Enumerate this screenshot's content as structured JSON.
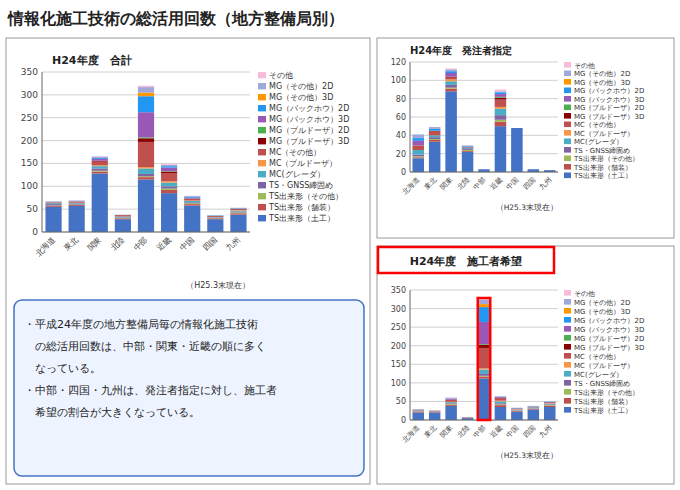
{
  "title": "情報化施工技術の総活用回数（地方整備局別）",
  "annotations": [
    "・平成24年度の地方整備局毎の情報化施工技術",
    "　の総活用回数は、中部・関東・近畿の順に多く",
    "　なっている。",
    "・中部・四国・九州は、発注者指定に対し、施工者",
    "　希望の割合が大きくなっている。"
  ],
  "chart_data": [
    {
      "type": "bar",
      "stacked": true,
      "grid": true,
      "legend": "right",
      "title": "H24年度　合計",
      "annotations": [
        "（H25.3末現在）"
      ],
      "categories": [
        "北海道",
        "東北",
        "関東",
        "北陸",
        "中部",
        "近畿",
        "中国",
        "四国",
        "九州"
      ],
      "ylim": [
        0,
        350
      ],
      "yticks": [
        0,
        50,
        100,
        150,
        200,
        250,
        300,
        350
      ],
      "series": [
        {
          "name": "TS出来形（土工）",
          "color": "#4472C4",
          "values": [
            55,
            57,
            128,
            28,
            115,
            85,
            58,
            28,
            38
          ]
        },
        {
          "name": "TS出来形（舗装）",
          "color": "#C0504D",
          "values": [
            2,
            2,
            4,
            2,
            5,
            7,
            3,
            2,
            3
          ]
        },
        {
          "name": "TS出来形（その他）",
          "color": "#9BBB59",
          "values": [
            1,
            1,
            2,
            1,
            2,
            3,
            2,
            1,
            2
          ]
        },
        {
          "name": "TS・GNSS締固め",
          "color": "#8064A2",
          "values": [
            3,
            2,
            5,
            1,
            5,
            5,
            2,
            1,
            2
          ]
        },
        {
          "name": "MC(グレーダ）",
          "color": "#4BACC6",
          "values": [
            2,
            2,
            5,
            2,
            12,
            8,
            3,
            1,
            2
          ]
        },
        {
          "name": "MC（ブルドーザ）",
          "color": "#F79646",
          "values": [
            0,
            0,
            2,
            0,
            3,
            3,
            1,
            0,
            1
          ]
        },
        {
          "name": "MC（その他）",
          "color": "#C0504D",
          "values": [
            2,
            3,
            8,
            3,
            55,
            18,
            4,
            2,
            3
          ]
        },
        {
          "name": "MG（ブルドーザ）3D",
          "color": "#8B0000",
          "values": [
            0,
            0,
            2,
            0,
            8,
            3,
            0,
            0,
            0
          ]
        },
        {
          "name": "MG（ブルドーザ）2D",
          "color": "#4CAF50",
          "values": [
            0,
            0,
            0,
            0,
            2,
            1,
            0,
            0,
            0
          ]
        },
        {
          "name": "MG（バックホウ）3D",
          "color": "#9B59B6",
          "values": [
            0,
            0,
            4,
            0,
            55,
            8,
            2,
            0,
            0
          ]
        },
        {
          "name": "MG（バックホウ）2D",
          "color": "#2196F3",
          "values": [
            0,
            0,
            2,
            0,
            35,
            3,
            2,
            1,
            1
          ]
        },
        {
          "name": "MG（その他）3D",
          "color": "#FF9800",
          "values": [
            0,
            0,
            0,
            0,
            8,
            0,
            0,
            0,
            0
          ]
        },
        {
          "name": "MG（その他）2D",
          "color": "#9FA8DA",
          "values": [
            2,
            2,
            3,
            1,
            12,
            3,
            2,
            1,
            1
          ]
        },
        {
          "name": "その他",
          "color": "#F8BBD9",
          "values": [
            0,
            0,
            1,
            0,
            3,
            2,
            0,
            0,
            0
          ]
        }
      ]
    },
    {
      "type": "bar",
      "stacked": true,
      "grid": true,
      "legend": "right",
      "title": "H24年度　発注者指定",
      "annotations": [
        "（H25.3末現在）"
      ],
      "categories": [
        "北海道",
        "東北",
        "関東",
        "北陸",
        "中部",
        "近畿",
        "中国",
        "四国",
        "九州"
      ],
      "ylim": [
        0,
        120
      ],
      "yticks": [
        0,
        20,
        40,
        60,
        80,
        100,
        120
      ],
      "series": [
        {
          "name": "TS出来形（土工）",
          "color": "#4472C4",
          "values": [
            15,
            33,
            88,
            22,
            3,
            50,
            48,
            3,
            2
          ]
        },
        {
          "name": "TS出来形（舗装）",
          "color": "#C0504D",
          "values": [
            1,
            2,
            3,
            1,
            0,
            5,
            0,
            0,
            0
          ]
        },
        {
          "name": "TS出来形（その他）",
          "color": "#9BBB59",
          "values": [
            1,
            1,
            1,
            1,
            0,
            2,
            0,
            0,
            0
          ]
        },
        {
          "name": "TS・GNSS締固め",
          "color": "#8064A2",
          "values": [
            2,
            2,
            3,
            1,
            0,
            5,
            0,
            0,
            0
          ]
        },
        {
          "name": "MC(グレーダ）",
          "color": "#4BACC6",
          "values": [
            5,
            2,
            4,
            1,
            0,
            7,
            0,
            0,
            0
          ]
        },
        {
          "name": "MC（ブルドーザ）",
          "color": "#F79646",
          "values": [
            0,
            0,
            2,
            0,
            0,
            2,
            0,
            0,
            0
          ]
        },
        {
          "name": "MC（その他）",
          "color": "#C0504D",
          "values": [
            5,
            5,
            2,
            1,
            0,
            8,
            0,
            0,
            0
          ]
        },
        {
          "name": "MG（ブルドーザ）3D",
          "color": "#8B0000",
          "values": [
            0,
            0,
            1,
            0,
            0,
            2,
            0,
            0,
            0
          ]
        },
        {
          "name": "MG（ブルドーザ）2D",
          "color": "#4CAF50",
          "values": [
            0,
            0,
            0,
            0,
            0,
            1,
            0,
            0,
            0
          ]
        },
        {
          "name": "MG（バックホウ）3D",
          "color": "#9B59B6",
          "values": [
            5,
            0,
            4,
            0,
            0,
            3,
            0,
            0,
            0
          ]
        },
        {
          "name": "MG（バックホウ）2D",
          "color": "#2196F3",
          "values": [
            3,
            2,
            2,
            1,
            0,
            2,
            0,
            0,
            0
          ]
        },
        {
          "name": "MG（その他）3D",
          "color": "#FF9800",
          "values": [
            0,
            0,
            0,
            0,
            0,
            0,
            0,
            0,
            0
          ]
        },
        {
          "name": "MG（その他）2D",
          "color": "#9FA8DA",
          "values": [
            4,
            2,
            2,
            1,
            0,
            1,
            0,
            0,
            0
          ]
        },
        {
          "name": "その他",
          "color": "#F8BBD9",
          "values": [
            0,
            0,
            1,
            0,
            0,
            2,
            0,
            0,
            0
          ]
        }
      ]
    },
    {
      "type": "bar",
      "stacked": true,
      "grid": true,
      "legend": "right",
      "title": "H24年度　施工者希望",
      "annotations": [
        "（H25.3末現在）"
      ],
      "categories": [
        "北海道",
        "東北",
        "関東",
        "北陸",
        "中部",
        "近畿",
        "中国",
        "四国",
        "九州"
      ],
      "ylim": [
        0,
        350
      ],
      "yticks": [
        0,
        50,
        100,
        150,
        200,
        250,
        300,
        350
      ],
      "series": [
        {
          "name": "TS出来形（土工）",
          "color": "#4472C4",
          "values": [
            20,
            20,
            38,
            5,
            112,
            35,
            22,
            28,
            35
          ]
        },
        {
          "name": "TS出来形（舗装）",
          "color": "#C0504D",
          "values": [
            2,
            1,
            3,
            1,
            5,
            5,
            2,
            2,
            3
          ]
        },
        {
          "name": "TS出来形（その他）",
          "color": "#9BBB59",
          "values": [
            1,
            0,
            2,
            0,
            2,
            2,
            1,
            1,
            2
          ]
        },
        {
          "name": "TS・GNSS締固め",
          "color": "#8064A2",
          "values": [
            1,
            1,
            2,
            0,
            5,
            3,
            1,
            1,
            2
          ]
        },
        {
          "name": "MC(グレーダ）",
          "color": "#4BACC6",
          "values": [
            2,
            1,
            3,
            1,
            12,
            5,
            2,
            2,
            2
          ]
        },
        {
          "name": "MC（ブルドーザ）",
          "color": "#F79646",
          "values": [
            0,
            0,
            1,
            0,
            3,
            2,
            1,
            0,
            1
          ]
        },
        {
          "name": "MC（その他）",
          "color": "#C0504D",
          "values": [
            2,
            2,
            5,
            1,
            55,
            7,
            2,
            2,
            3
          ]
        },
        {
          "name": "MG（ブルドーザ）3D",
          "color": "#8B0000",
          "values": [
            0,
            0,
            1,
            0,
            8,
            1,
            0,
            0,
            0
          ]
        },
        {
          "name": "MG（ブルドーザ）2D",
          "color": "#4CAF50",
          "values": [
            0,
            0,
            0,
            0,
            2,
            0,
            0,
            0,
            0
          ]
        },
        {
          "name": "MG（バックホウ）3D",
          "color": "#9B59B6",
          "values": [
            0,
            0,
            2,
            0,
            60,
            2,
            0,
            0,
            0
          ]
        },
        {
          "name": "MG（バックホウ）2D",
          "color": "#2196F3",
          "values": [
            0,
            0,
            1,
            0,
            40,
            1,
            1,
            1,
            1
          ]
        },
        {
          "name": "MG（その他）3D",
          "color": "#FF9800",
          "values": [
            0,
            0,
            0,
            0,
            8,
            0,
            0,
            0,
            0
          ]
        },
        {
          "name": "MG（その他）2D",
          "color": "#9FA8DA",
          "values": [
            1,
            1,
            2,
            0,
            12,
            1,
            1,
            1,
            1
          ]
        },
        {
          "name": "その他",
          "color": "#F8BBD9",
          "values": [
            0,
            0,
            1,
            0,
            3,
            0,
            0,
            0,
            0
          ]
        }
      ]
    }
  ]
}
